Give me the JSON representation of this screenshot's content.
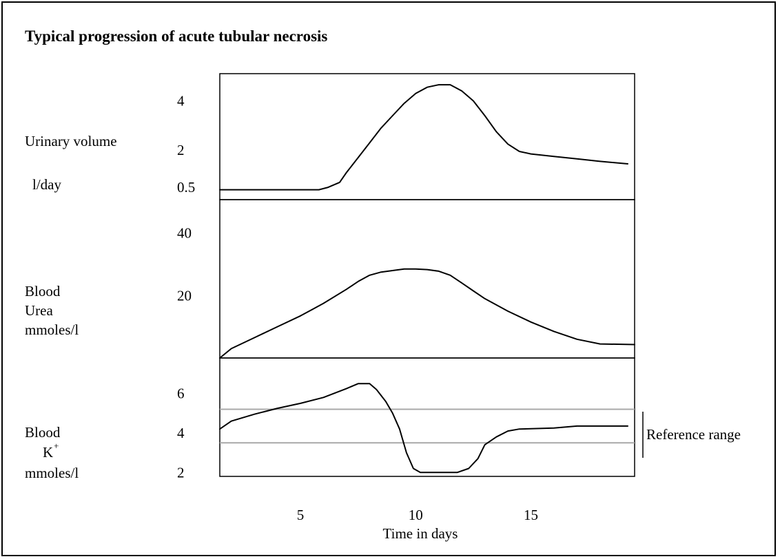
{
  "chart_data": [
    {
      "type": "line",
      "title": "Typical progression of acute tubular necrosis",
      "xlabel": "Time in days",
      "x_ticks": [
        "5",
        "10",
        "15"
      ],
      "xlim": [
        1.5,
        19.5
      ],
      "ylabel": "Urinary volume",
      "ylabel_unit": "l/day",
      "y_ticks": [
        "4",
        "2",
        "0.5"
      ],
      "y_tick_values": [
        4,
        2,
        0.5
      ],
      "ylim": [
        0.0,
        5.1
      ],
      "series": [
        {
          "values": [
            [
              1.5,
              0.4
            ],
            [
              3,
              0.4
            ],
            [
              5,
              0.4
            ],
            [
              5.8,
              0.4
            ],
            [
              6.2,
              0.5
            ],
            [
              6.7,
              0.7
            ],
            [
              7,
              1.1
            ],
            [
              7.5,
              1.7
            ],
            [
              8,
              2.3
            ],
            [
              8.5,
              2.9
            ],
            [
              9,
              3.4
            ],
            [
              9.5,
              3.9
            ],
            [
              10,
              4.3
            ],
            [
              10.5,
              4.55
            ],
            [
              11,
              4.65
            ],
            [
              11.5,
              4.65
            ],
            [
              12,
              4.4
            ],
            [
              12.5,
              4.0
            ],
            [
              13,
              3.4
            ],
            [
              13.5,
              2.75
            ],
            [
              14,
              2.25
            ],
            [
              14.5,
              1.95
            ],
            [
              15,
              1.85
            ],
            [
              16,
              1.75
            ],
            [
              17,
              1.65
            ],
            [
              18,
              1.55
            ],
            [
              19.2,
              1.45
            ]
          ]
        }
      ]
    },
    {
      "type": "line",
      "ylabel": "Blood Urea",
      "ylabel_lines": [
        "Blood",
        "Urea",
        "mmoles/l"
      ],
      "y_ticks": [
        "40",
        "20"
      ],
      "y_tick_values": [
        40,
        20
      ],
      "ylim": [
        0.0,
        50.7
      ],
      "series": [
        {
          "values": [
            [
              1.5,
              0
            ],
            [
              2,
              3
            ],
            [
              3,
              6.5
            ],
            [
              4,
              10
            ],
            [
              5,
              13.5
            ],
            [
              5.5,
              15.5
            ],
            [
              6,
              17.5
            ],
            [
              7,
              22
            ],
            [
              7.5,
              24.5
            ],
            [
              8,
              26.5
            ],
            [
              8.5,
              27.5
            ],
            [
              9,
              28
            ],
            [
              9.5,
              28.5
            ],
            [
              10,
              28.5
            ],
            [
              10.5,
              28.3
            ],
            [
              11,
              27.8
            ],
            [
              11.5,
              26.5
            ],
            [
              12,
              24
            ],
            [
              12.5,
              21.5
            ],
            [
              13,
              19
            ],
            [
              14,
              15
            ],
            [
              15,
              11.5
            ],
            [
              16,
              8.5
            ],
            [
              17,
              6
            ],
            [
              18,
              4.5
            ],
            [
              19.5,
              4.3
            ]
          ]
        }
      ]
    },
    {
      "type": "line",
      "ylabel": "Blood K+",
      "ylabel_lines": [
        "Blood",
        "K",
        "+",
        "mmoles/l"
      ],
      "y_ticks": [
        "6",
        "4",
        "2"
      ],
      "y_tick_values": [
        6,
        4,
        2
      ],
      "ylim": [
        1.8,
        7.8
      ],
      "reference_range": [
        3.5,
        5.2
      ],
      "reference_label": "Reference range",
      "series": [
        {
          "values": [
            [
              1.5,
              4.2
            ],
            [
              2,
              4.6
            ],
            [
              3,
              4.95
            ],
            [
              4,
              5.25
            ],
            [
              5,
              5.5
            ],
            [
              6,
              5.8
            ],
            [
              7,
              6.25
            ],
            [
              7.5,
              6.5
            ],
            [
              8,
              6.5
            ],
            [
              8.3,
              6.2
            ],
            [
              8.7,
              5.6
            ],
            [
              9,
              5.0
            ],
            [
              9.3,
              4.2
            ],
            [
              9.6,
              3.0
            ],
            [
              9.9,
              2.2
            ],
            [
              10.2,
              2.0
            ],
            [
              11,
              2.0
            ],
            [
              11.8,
              2.0
            ],
            [
              12.3,
              2.2
            ],
            [
              12.7,
              2.7
            ],
            [
              13,
              3.4
            ],
            [
              13.5,
              3.8
            ],
            [
              14,
              4.1
            ],
            [
              14.5,
              4.2
            ],
            [
              16,
              4.25
            ],
            [
              17,
              4.35
            ],
            [
              19.2,
              4.35
            ]
          ]
        }
      ]
    }
  ]
}
